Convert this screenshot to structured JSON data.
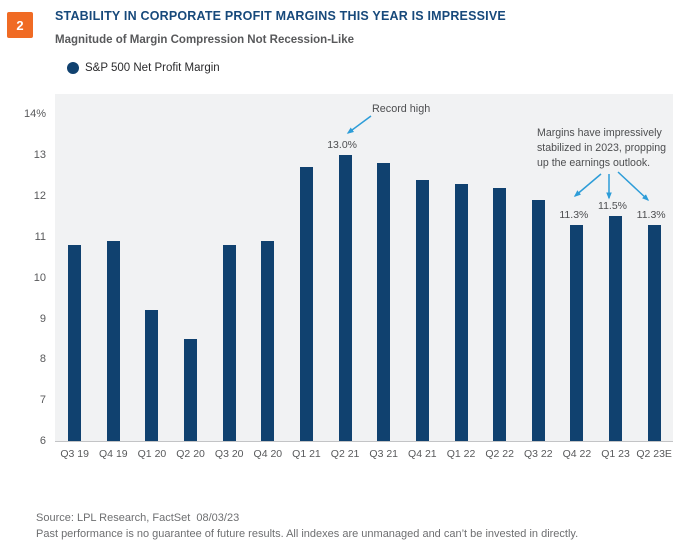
{
  "badge": "2",
  "chart_data": {
    "type": "bar",
    "title": "STABILITY IN CORPORATE PROFIT MARGINS THIS YEAR IS IMPRESSIVE",
    "subtitle": "Magnitude of Margin Compression Not Recession-Like",
    "series_name": "S&P 500 Net Profit Margin",
    "unit": "%",
    "categories": [
      "Q3 19",
      "Q4 19",
      "Q1 20",
      "Q2 20",
      "Q3 20",
      "Q4 20",
      "Q1 21",
      "Q2 21",
      "Q3 21",
      "Q4 21",
      "Q1 22",
      "Q2 22",
      "Q3 22",
      "Q4 22",
      "Q1 23",
      "Q2 23E"
    ],
    "values": [
      10.8,
      10.9,
      9.2,
      8.5,
      10.8,
      10.9,
      12.7,
      13.0,
      12.8,
      12.4,
      12.3,
      12.2,
      11.9,
      11.3,
      11.5,
      11.3
    ],
    "ylim": [
      6,
      14.5
    ],
    "ytick_labels": [
      "14%",
      "13",
      "12",
      "11",
      "10",
      "9",
      "8",
      "7",
      "6"
    ],
    "ytick_values": [
      14,
      13,
      12,
      11,
      10,
      9,
      8,
      7,
      6
    ],
    "grid": false,
    "legend_position": "top-left",
    "bar_color": "#10416f",
    "plot_background": "#f1f2f3",
    "annotations": {
      "record_high": {
        "text": "Record high",
        "target": "Q2 21"
      },
      "callout": {
        "text": "Margins have impressively stabilized in 2023, propping up the earnings outlook.",
        "lines": [
          "Margins have impressively",
          "stabilized in 2023, propping",
          "up the earnings outlook."
        ],
        "targets": [
          "Q4 22",
          "Q1 23",
          "Q2 23E"
        ]
      },
      "bar_labels": [
        {
          "category": "Q2 21",
          "label": "13.0%"
        },
        {
          "category": "Q4 22",
          "label": "11.3%"
        },
        {
          "category": "Q1 23",
          "label": "11.5%"
        },
        {
          "category": "Q2 23E",
          "label": "11.3%"
        }
      ]
    }
  },
  "footer": {
    "source": "Source: LPL Research, FactSet  08/03/23",
    "disclaimer": "Past performance is no guarantee of future results. All indexes are unmanaged and can’t be invested in directly."
  },
  "colors": {
    "navy": "#10416f",
    "title_navy": "#17497b",
    "badge_orange": "#f06b24",
    "arrow_blue": "#2d9dd8",
    "plot_bg": "#f1f2f3",
    "axis_text": "#58595b",
    "annotation_text": "#4d4e50",
    "footer_text": "#6e6f71",
    "axis_line": "#c3c4c6"
  }
}
